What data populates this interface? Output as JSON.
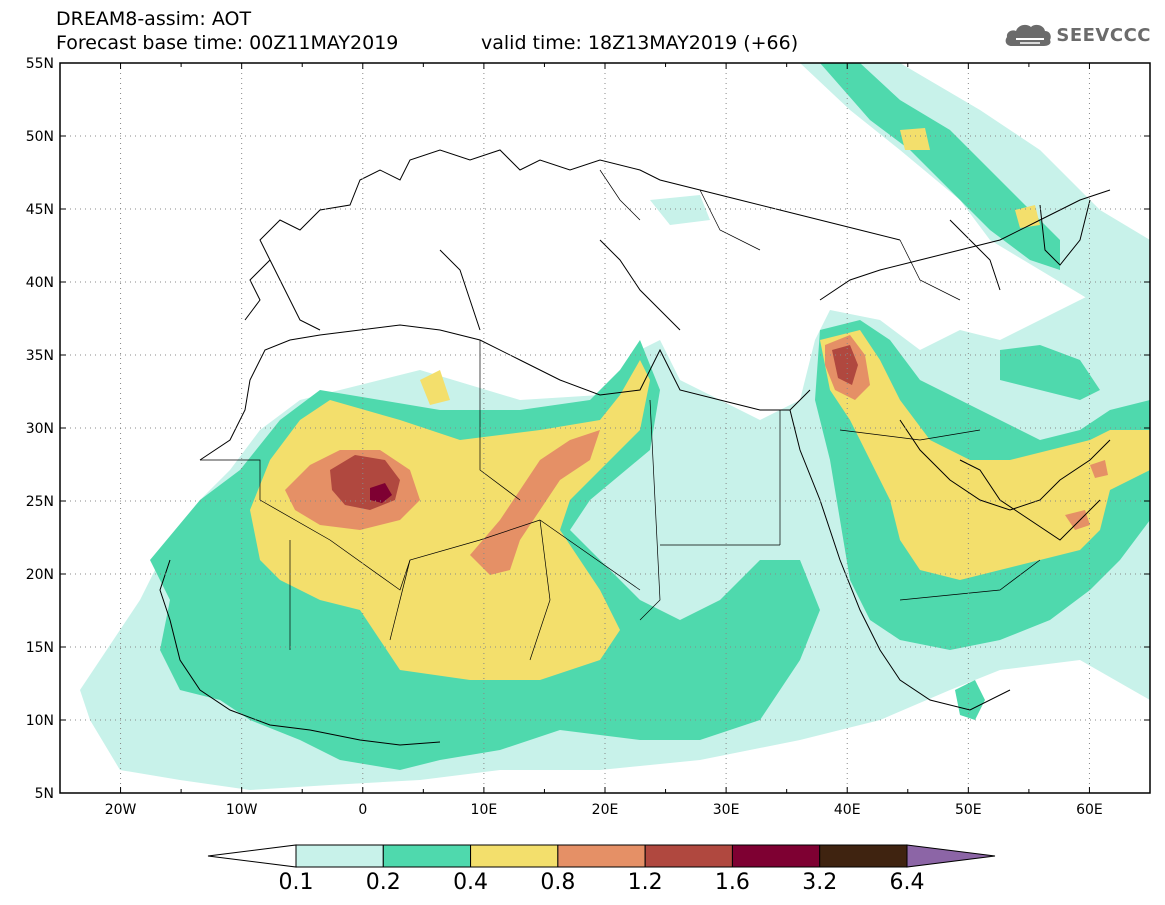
{
  "header": {
    "model_title": "DREAM8-assim: AOT",
    "forecast_base": "Forecast base time: 00Z11MAY2019",
    "valid_time": "valid time: 18Z13MAY2019 (+66)"
  },
  "logo": {
    "text": "SEEVCCC",
    "icon": "cloud-icon"
  },
  "map": {
    "lat_labels": [
      "55N",
      "50N",
      "45N",
      "40N",
      "35N",
      "30N",
      "25N",
      "20N",
      "15N",
      "10N",
      "5N"
    ],
    "lon_labels": [
      "20W",
      "10W",
      "0",
      "10E",
      "20E",
      "30E",
      "40E",
      "50E",
      "60E"
    ],
    "lon_range": [
      -25,
      65
    ],
    "lat_range": [
      5,
      55
    ],
    "grid": "dotted"
  },
  "colorbar": {
    "labels": [
      "0.1",
      "0.2",
      "0.4",
      "0.8",
      "1.2",
      "1.6",
      "3.2",
      "6.4"
    ],
    "colors": [
      "#ffffff",
      "#c8f2ea",
      "#4fd9ad",
      "#f3df6c",
      "#e59066",
      "#b0483f",
      "#7e0032",
      "#3f2310",
      "#8c65a6"
    ]
  },
  "field_colors": {
    "c1": "#c8f2ea",
    "c2": "#4fd9ad",
    "c3": "#f3df6c",
    "c4": "#e59066",
    "c5": "#b0483f",
    "c6": "#7e0032"
  }
}
